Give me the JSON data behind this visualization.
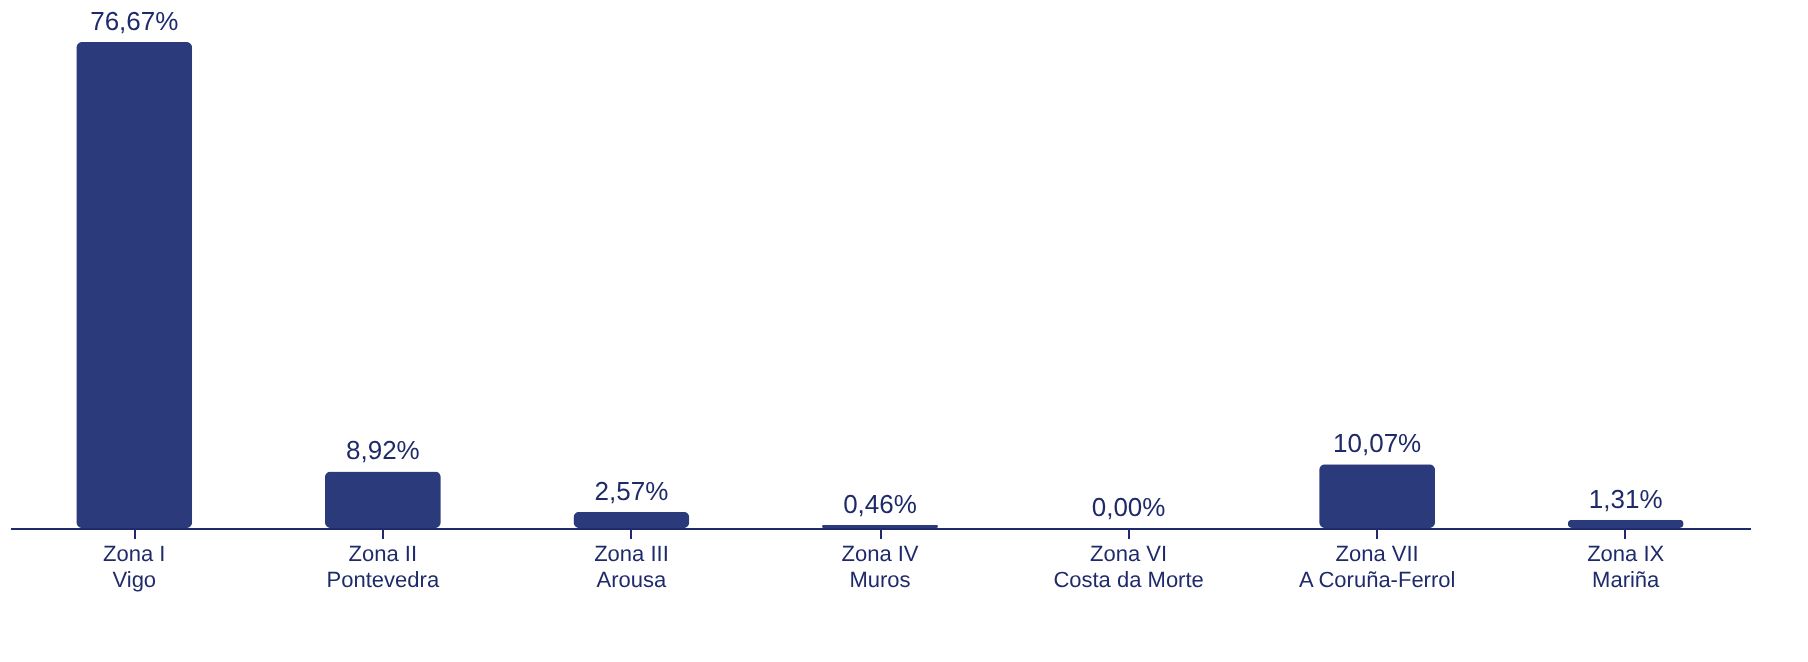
{
  "chart_data": {
    "type": "bar",
    "categories": [
      "Zona I\nVigo",
      "Zona II\nPontevedra",
      "Zona III\nArousa",
      "Zona IV\nMuros",
      "Zona VI\nCosta da Morte",
      "Zona VII\nA Coruña-Ferrol",
      "Zona IX\nMariña"
    ],
    "values": [
      76.67,
      8.92,
      2.57,
      0.46,
      0.0,
      10.07,
      1.31
    ],
    "value_labels": [
      "76,67%",
      "8,92%",
      "2,57%",
      "0,46%",
      "0,00%",
      "10,07%",
      "1,31%"
    ],
    "color": "#2b3a7a",
    "tick_labels": "x"
  }
}
